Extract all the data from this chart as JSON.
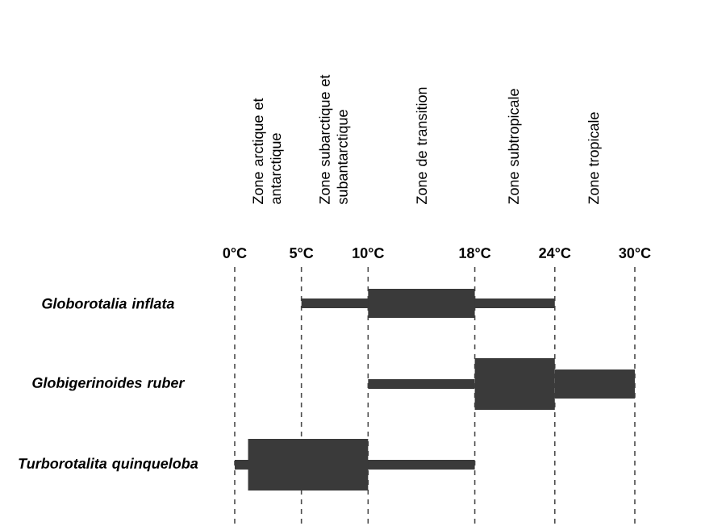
{
  "chart_data": {
    "type": "bar",
    "orientation": "horizontal",
    "categories": [
      "Globorotalia inflata",
      "Globigerinoides ruber",
      "Turborotalita quinqueloba"
    ],
    "series": [
      {
        "color": "#3a3a3a",
        "base": [
          5,
          10,
          0
        ],
        "values": [
          19,
          8,
          18
        ]
      },
      {
        "color": "#3a3a3a",
        "base": [
          10,
          24,
          null
        ],
        "values": [
          8,
          6,
          null
        ]
      },
      {
        "color": "#3a3a3a",
        "base": [
          null,
          18,
          1
        ],
        "values": [
          null,
          6,
          9
        ]
      }
    ],
    "xlim": [
      0,
      30
    ],
    "xticks": [
      {
        "value": 0,
        "label": "0°C"
      },
      {
        "value": 5,
        "label": "5°C"
      },
      {
        "value": 10,
        "label": "10°C"
      },
      {
        "value": 18,
        "label": "18°C"
      },
      {
        "value": 24,
        "label": "24°C"
      },
      {
        "value": 30,
        "label": "30°C"
      }
    ],
    "grid": "x",
    "annotations": [
      "Zone arctique et antarctique",
      "Zone subarctique et subantarctique",
      "Zone de transition",
      "Zone subtropicale",
      "Zone tropicale"
    ]
  }
}
